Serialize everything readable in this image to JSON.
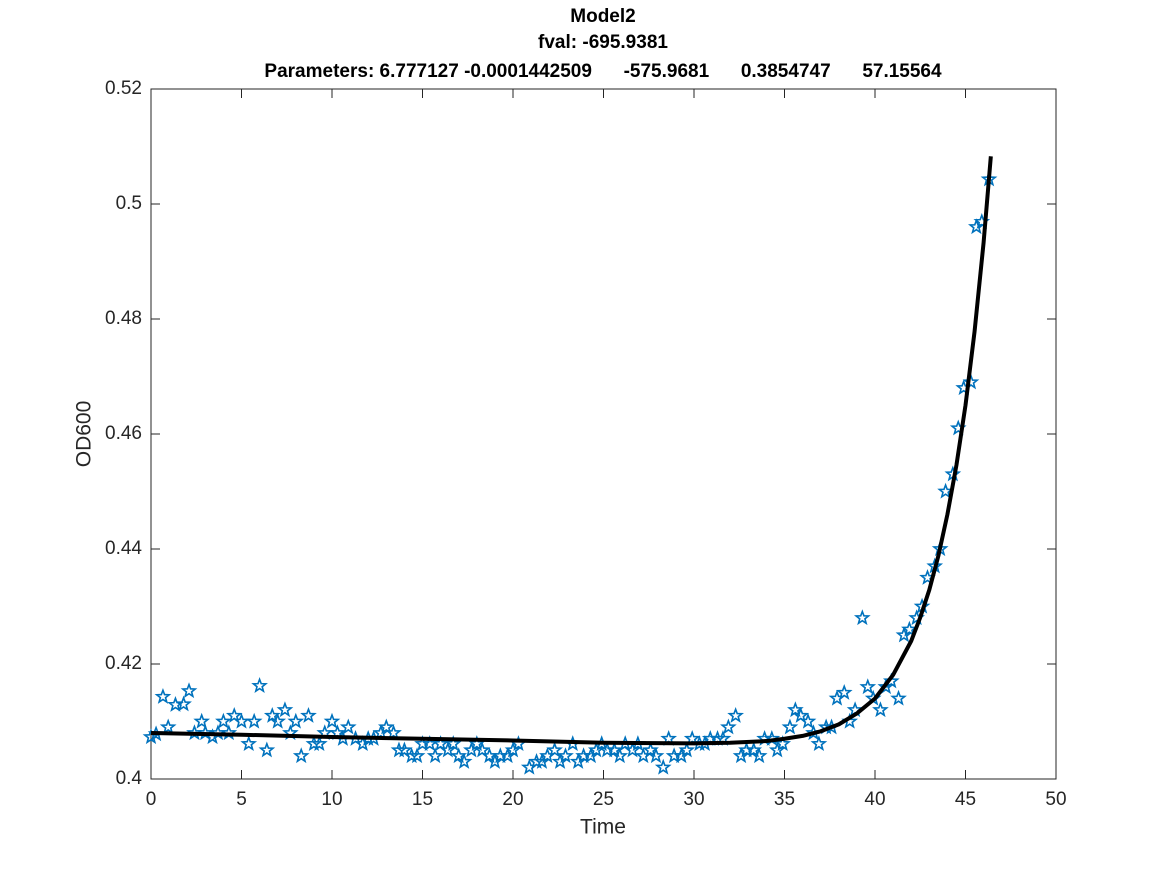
{
  "chart_data": {
    "type": "scatter",
    "title_lines": [
      "Model2",
      "fval: -695.9381",
      "Parameters: 6.777127 -0.0001442509      -575.9681      0.3854747      57.15564"
    ],
    "x_label": "Time",
    "y_label": "OD600",
    "xlim": [
      0,
      50
    ],
    "xticks": [
      0,
      5,
      10,
      15,
      20,
      25,
      30,
      35,
      40,
      45,
      50
    ],
    "ylim": [
      0.4,
      0.52
    ],
    "yticks": [
      0.4,
      0.42,
      0.44,
      0.46,
      0.48,
      0.5,
      0.52
    ],
    "grid": false,
    "series": [
      {
        "color": "#0072BD",
        "marker": "star",
        "x": [
          0,
          0.28,
          0.66,
          0.95,
          1.35,
          1.8,
          2.1,
          2.4,
          2.8,
          3.0,
          3.4,
          3.7,
          4.0,
          4.3,
          4.6,
          5.0,
          5.4,
          5.7,
          6.0,
          6.4,
          6.7,
          7.0,
          7.4,
          7.7,
          8.0,
          8.3,
          8.7,
          9.0,
          9.3,
          9.6,
          10.0,
          10.3,
          10.6,
          10.9,
          11.3,
          11.7,
          12.0,
          12.3,
          12.7,
          13.0,
          13.4,
          13.7,
          14.0,
          14.4,
          14.7,
          15.0,
          15.4,
          15.7,
          16.0,
          16.4,
          16.7,
          17.0,
          17.3,
          17.7,
          18.0,
          18.3,
          18.7,
          19.0,
          19.3,
          19.7,
          20.0,
          20.3,
          20.9,
          21.3,
          21.6,
          21.9,
          22.3,
          22.6,
          22.9,
          23.3,
          23.6,
          23.9,
          24.3,
          24.6,
          24.9,
          25.2,
          25.6,
          25.9,
          26.2,
          26.6,
          26.9,
          27.2,
          27.6,
          27.9,
          28.3,
          28.6,
          28.9,
          29.3,
          29.6,
          29.9,
          30.3,
          30.6,
          30.9,
          31.3,
          31.6,
          31.9,
          32.3,
          32.6,
          32.9,
          33.3,
          33.6,
          33.9,
          34.3,
          34.6,
          34.9,
          35.3,
          35.6,
          35.9,
          36.3,
          36.6,
          36.9,
          37.3,
          37.6,
          37.9,
          38.3,
          38.6,
          38.9,
          39.3,
          39.6,
          39.9,
          40.3,
          40.6,
          40.9,
          41.3,
          41.6,
          41.9,
          42.3,
          42.6,
          42.9,
          43.3,
          43.6,
          43.9,
          44.3,
          44.6,
          44.9,
          45.3,
          45.6,
          45.9,
          46.3
        ],
        "values": [
          0.4073,
          0.4078,
          0.4143,
          0.409,
          0.4129,
          0.413,
          0.4153,
          0.408,
          0.41,
          0.408,
          0.4073,
          0.408,
          0.41,
          0.408,
          0.411,
          0.41,
          0.4061,
          0.41,
          0.4162,
          0.405,
          0.411,
          0.41,
          0.412,
          0.408,
          0.41,
          0.404,
          0.411,
          0.4061,
          0.4061,
          0.408,
          0.41,
          0.408,
          0.407,
          0.409,
          0.407,
          0.4061,
          0.407,
          0.407,
          0.408,
          0.409,
          0.408,
          0.405,
          0.405,
          0.404,
          0.404,
          0.4061,
          0.4061,
          0.404,
          0.4061,
          0.405,
          0.4061,
          0.404,
          0.403,
          0.405,
          0.4061,
          0.405,
          0.404,
          0.403,
          0.404,
          0.404,
          0.405,
          0.4061,
          0.402,
          0.403,
          0.403,
          0.404,
          0.405,
          0.403,
          0.404,
          0.4061,
          0.403,
          0.404,
          0.404,
          0.405,
          0.4061,
          0.405,
          0.405,
          0.404,
          0.4061,
          0.405,
          0.4061,
          0.404,
          0.405,
          0.404,
          0.402,
          0.407,
          0.404,
          0.404,
          0.405,
          0.407,
          0.4061,
          0.4061,
          0.407,
          0.407,
          0.407,
          0.409,
          0.411,
          0.404,
          0.405,
          0.405,
          0.404,
          0.407,
          0.407,
          0.405,
          0.4061,
          0.409,
          0.412,
          0.411,
          0.41,
          0.408,
          0.4061,
          0.409,
          0.409,
          0.414,
          0.415,
          0.41,
          0.412,
          0.428,
          0.416,
          0.414,
          0.412,
          0.416,
          0.417,
          0.414,
          0.425,
          0.426,
          0.428,
          0.43,
          0.435,
          0.437,
          0.44,
          0.45,
          0.453,
          0.461,
          0.468,
          0.469,
          0.496,
          0.4969,
          0.5043
        ]
      },
      {
        "color": "#000000",
        "marker": "line",
        "x": [
          0,
          5,
          10,
          15,
          20,
          25,
          30,
          32,
          34,
          35,
          36,
          37,
          38,
          39,
          40,
          41,
          42,
          42.5,
          43,
          43.5,
          44,
          44.5,
          45,
          45.5,
          46,
          46.4
        ],
        "values": [
          0.408,
          0.4077,
          0.4073,
          0.407,
          0.4067,
          0.4063,
          0.4062,
          0.4063,
          0.4066,
          0.407,
          0.4075,
          0.4083,
          0.4095,
          0.4114,
          0.414,
          0.4181,
          0.424,
          0.4281,
          0.4329,
          0.4388,
          0.446,
          0.4546,
          0.465,
          0.4778,
          0.4933,
          0.5083
        ]
      }
    ]
  }
}
